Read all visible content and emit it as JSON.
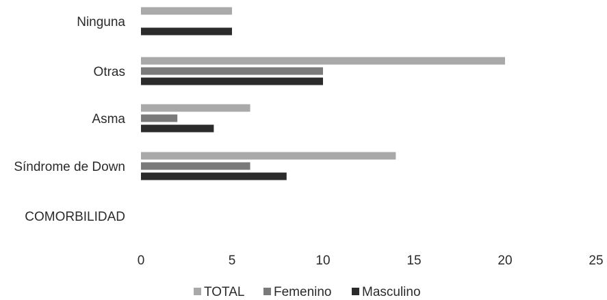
{
  "chart_data": {
    "type": "bar",
    "orientation": "horizontal",
    "categories": [
      "Ninguna",
      "Otras",
      "Asma",
      "Síndrome de Down",
      "COMORBILIDAD"
    ],
    "series": [
      {
        "name": "TOTAL",
        "values": [
          5,
          20,
          6,
          14,
          null
        ],
        "color": "#a9a9a9"
      },
      {
        "name": "Femenino",
        "values": [
          null,
          10,
          2,
          6,
          null
        ],
        "color": "#7a7a7a"
      },
      {
        "name": "Masculino",
        "values": [
          5,
          10,
          4,
          8,
          null
        ],
        "color": "#2b2b2b"
      }
    ],
    "xlim": [
      0,
      25
    ],
    "xticks": [
      "0",
      "5",
      "10",
      "15",
      "20",
      "25"
    ],
    "grid": false,
    "legend_position": "bottom"
  }
}
